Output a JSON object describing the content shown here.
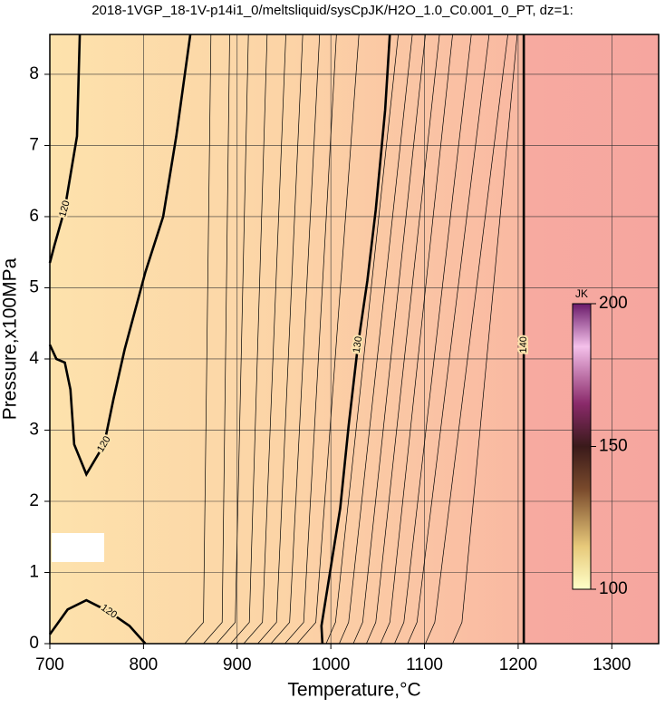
{
  "chart_data": {
    "type": "contour",
    "title": "2018-1VGP_18-1V-p14i1_0/meltsliquid/sysCpJK/H2O_1.0_C0.001_0_PT, dz=1:",
    "x_label": "Temperature,°C",
    "y_label": "Pressure,x100MPa",
    "xlim": [
      700,
      1350
    ],
    "xticks": [
      700,
      800,
      900,
      1000,
      1100,
      1200,
      1300
    ],
    "ylim": [
      0,
      8.56
    ],
    "yticks": [
      0,
      1,
      2,
      3,
      4,
      5,
      6,
      7,
      8
    ],
    "grid": true,
    "contours": [
      {
        "level": 120,
        "x": [
          850,
          835,
          821,
          802,
          780,
          768,
          758,
          739,
          726,
          722,
          716,
          707,
          700
        ],
        "y": [
          8.56,
          7.13,
          6.0,
          5.22,
          4.14,
          3.44,
          2.8,
          2.38,
          2.8,
          3.57,
          3.95,
          4.0,
          4.2
        ]
      },
      {
        "level": 120,
        "x": [
          732,
          729,
          716,
          705,
          700
        ],
        "y": [
          8.56,
          7.13,
          6.11,
          5.6,
          5.35
        ]
      },
      {
        "level": 120,
        "x": [
          700,
          719,
          739,
          763,
          785,
          802
        ],
        "y": [
          0.13,
          0.48,
          0.61,
          0.45,
          0.25,
          0
        ]
      },
      {
        "level": 130,
        "x": [
          991,
          990,
          1010,
          1019,
          1029,
          1039,
          1048,
          1058,
          1063
        ],
        "y": [
          0,
          0.25,
          1.9,
          3.06,
          4.2,
          5.1,
          6.1,
          7.5,
          8.56
        ]
      },
      {
        "level": 140,
        "x": [
          1206,
          1206,
          1206
        ],
        "y": [
          0,
          4.2,
          8.56
        ]
      },
      {
        "level": 121,
        "x": [
          844,
          864,
          872
        ],
        "y": [
          0,
          0.3,
          8.56
        ]
      },
      {
        "level": 122,
        "x": [
          864,
          884,
          892
        ],
        "y": [
          0,
          0.3,
          8.56
        ]
      },
      {
        "level": 123,
        "x": [
          878,
          898,
          912
        ],
        "y": [
          0,
          0.3,
          8.56
        ]
      },
      {
        "level": 124,
        "x": [
          893,
          913,
          932
        ],
        "y": [
          0,
          0.3,
          8.56
        ]
      },
      {
        "level": 125,
        "x": [
          907,
          927,
          952
        ],
        "y": [
          0,
          0.3,
          8.56
        ]
      },
      {
        "level": 126,
        "x": [
          922,
          942,
          970
        ],
        "y": [
          0,
          0.3,
          8.56
        ]
      },
      {
        "level": 127,
        "x": [
          936,
          956,
          988
        ],
        "y": [
          0,
          0.3,
          8.56
        ]
      },
      {
        "level": 128,
        "x": [
          951,
          971,
          1006
        ],
        "y": [
          0,
          0.3,
          8.56
        ]
      },
      {
        "level": 129,
        "x": [
          964,
          984,
          1030
        ],
        "y": [
          0,
          0.3,
          8.56
        ]
      },
      {
        "level": 131,
        "x": [
          995,
          1005,
          1072
        ],
        "y": [
          0,
          0.3,
          8.56
        ]
      },
      {
        "level": 132,
        "x": [
          1009,
          1019,
          1087
        ],
        "y": [
          0,
          0.3,
          8.56
        ]
      },
      {
        "level": 133,
        "x": [
          1024,
          1034,
          1101
        ],
        "y": [
          0,
          0.3,
          8.56
        ]
      },
      {
        "level": 134,
        "x": [
          1038,
          1048,
          1116
        ],
        "y": [
          0,
          0.3,
          8.56
        ]
      },
      {
        "level": 135,
        "x": [
          1053,
          1063,
          1130
        ],
        "y": [
          0,
          0.3,
          8.56
        ]
      },
      {
        "level": 136,
        "x": [
          1068,
          1078,
          1150
        ],
        "y": [
          0,
          0.3,
          8.56
        ]
      },
      {
        "level": 137,
        "x": [
          1082,
          1092,
          1169
        ],
        "y": [
          0,
          0.3,
          8.56
        ]
      },
      {
        "level": 138,
        "x": [
          1101,
          1111,
          1189
        ],
        "y": [
          0,
          0.3,
          8.56
        ]
      },
      {
        "level": 139,
        "x": [
          1130,
          1140,
          1199
        ],
        "y": [
          0,
          0.3,
          8.56
        ]
      }
    ],
    "colorbar": {
      "label": "JK",
      "lim": [
        100,
        200
      ],
      "ticks": [
        100,
        150,
        200
      ]
    }
  }
}
